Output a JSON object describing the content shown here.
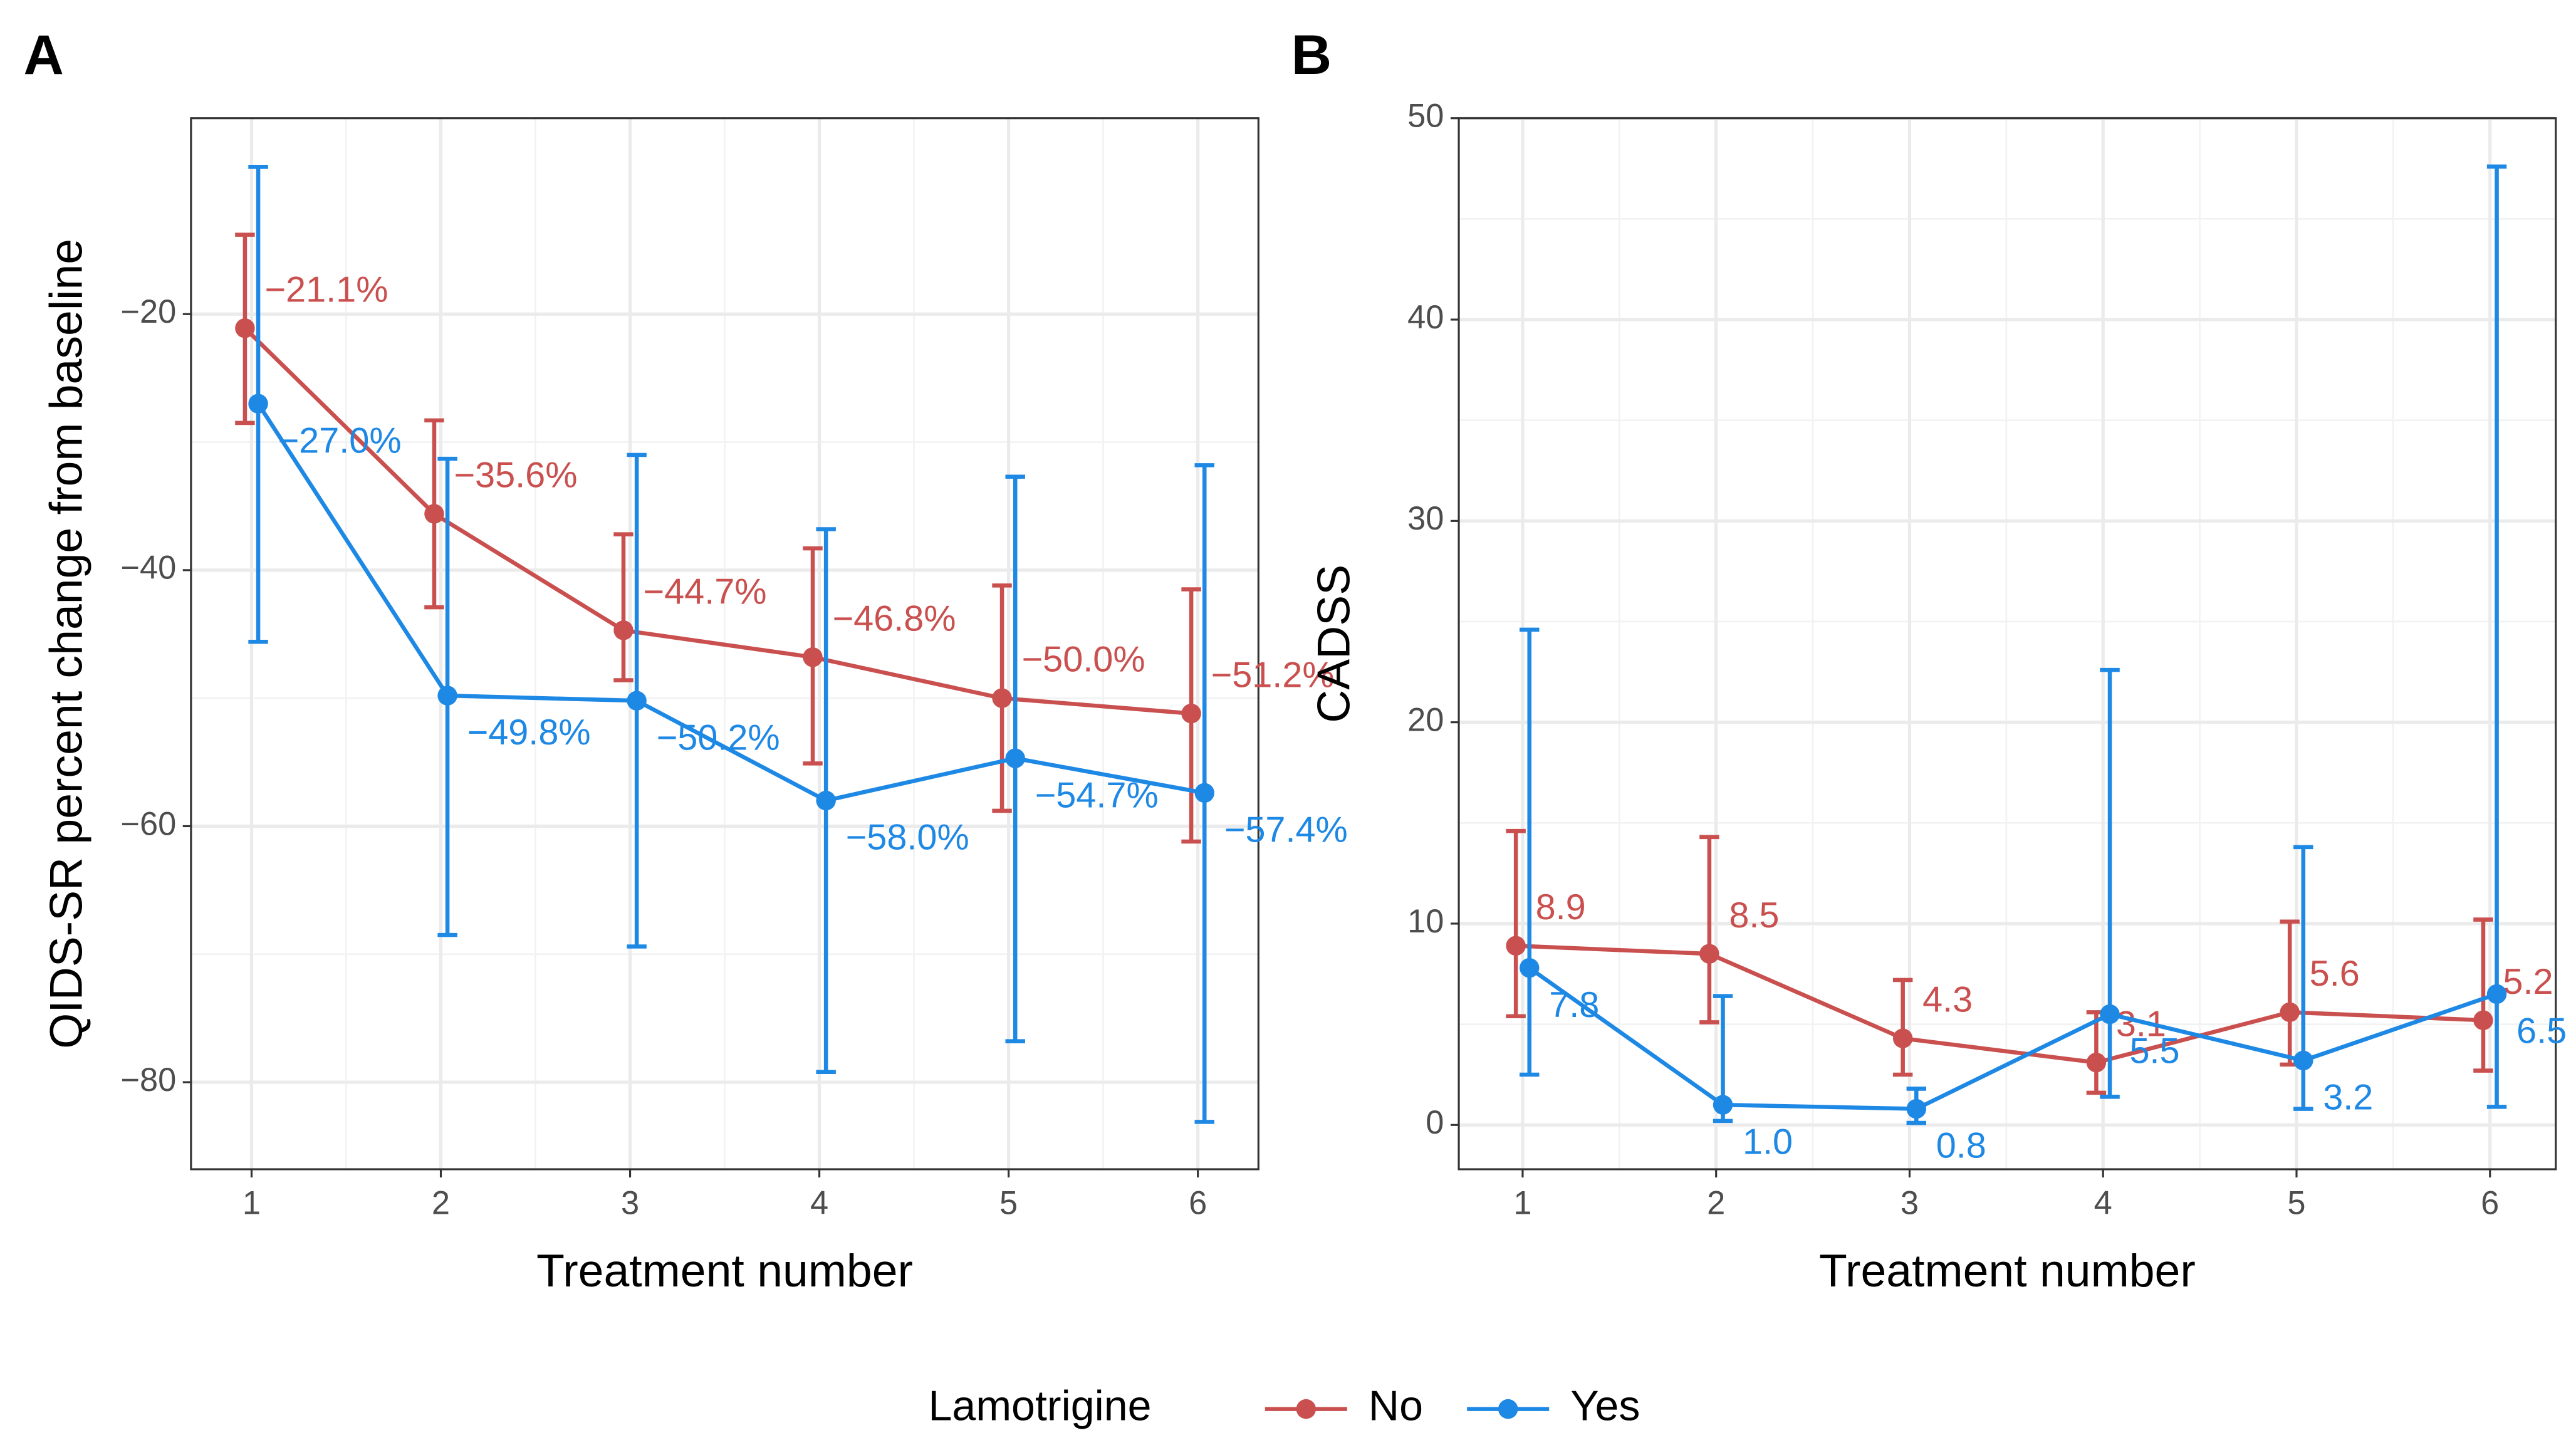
{
  "legend_title": "Lamotrigine",
  "chart_data": [
    {
      "type": "line",
      "title": "A",
      "x_label": "Treatment number",
      "y_label": "QIDS-SR percent change from baseline",
      "x": [
        1,
        2,
        3,
        4,
        5,
        6
      ],
      "xlim": [
        0.68,
        6.32
      ],
      "xticks": [
        1,
        2,
        3,
        4,
        5,
        6
      ],
      "ylim": [
        -86.8,
        -4.7
      ],
      "yticks": [
        {
          "value": -80,
          "label": "−80"
        },
        {
          "value": -60,
          "label": "−60"
        },
        {
          "value": -40,
          "label": "−40"
        },
        {
          "value": -20,
          "label": "−20"
        }
      ],
      "grid": true,
      "series": [
        {
          "name": "No",
          "color": "#c9504f",
          "values": [
            -21.1,
            -35.6,
            -44.7,
            -46.8,
            -50.0,
            -51.2
          ],
          "value_labels": [
            "−21.1%",
            "−35.6%",
            "−44.7%",
            "−46.8%",
            "−50.0%",
            "−51.2%"
          ],
          "lower": [
            -28.5,
            -42.9,
            -48.6,
            -55.1,
            -58.8,
            -61.2
          ],
          "upper": [
            -13.8,
            -28.3,
            -37.2,
            -38.3,
            -41.2,
            -41.5
          ]
        },
        {
          "name": "Yes",
          "color": "#1e88e5",
          "values": [
            -27.0,
            -49.8,
            -50.2,
            -58.0,
            -54.7,
            -57.4
          ],
          "value_labels": [
            "−27.0%",
            "−49.8%",
            "−50.2%",
            "−58.0%",
            "−54.7%",
            "−57.4%"
          ],
          "lower": [
            -45.6,
            -68.5,
            -69.4,
            -79.2,
            -76.8,
            -83.1
          ],
          "upper": [
            -8.5,
            -31.3,
            -31.0,
            -36.8,
            -32.7,
            -31.8
          ]
        }
      ]
    },
    {
      "type": "line",
      "title": "B",
      "x_label": "Treatment number",
      "y_label": "CADSS",
      "x": [
        1,
        2,
        3,
        4,
        5,
        6
      ],
      "xlim": [
        0.67,
        6.34
      ],
      "xticks": [
        1,
        2,
        3,
        4,
        5,
        6
      ],
      "ylim": [
        -2.2,
        50
      ],
      "yticks": [
        0,
        10,
        20,
        30,
        40,
        50
      ],
      "grid": true,
      "series": [
        {
          "name": "No",
          "color": "#c9504f",
          "values": [
            8.9,
            8.5,
            4.3,
            3.1,
            5.6,
            5.2
          ],
          "value_labels": [
            "8.9",
            "8.5",
            "4.3",
            "3.1",
            "5.6",
            "5.2"
          ],
          "lower": [
            5.4,
            5.1,
            2.5,
            1.6,
            3.0,
            2.7
          ],
          "upper": [
            14.6,
            14.3,
            7.2,
            5.6,
            10.1,
            10.2
          ]
        },
        {
          "name": "Yes",
          "color": "#1e88e5",
          "values": [
            7.8,
            1.0,
            0.8,
            5.5,
            3.2,
            6.5
          ],
          "value_labels": [
            "7.8",
            "1.0",
            "0.8",
            "5.5",
            "3.2",
            "6.5"
          ],
          "lower": [
            2.5,
            0.2,
            0.1,
            1.4,
            0.8,
            0.9
          ],
          "upper": [
            24.6,
            6.4,
            1.8,
            22.6,
            13.8,
            47.6
          ]
        }
      ]
    }
  ]
}
